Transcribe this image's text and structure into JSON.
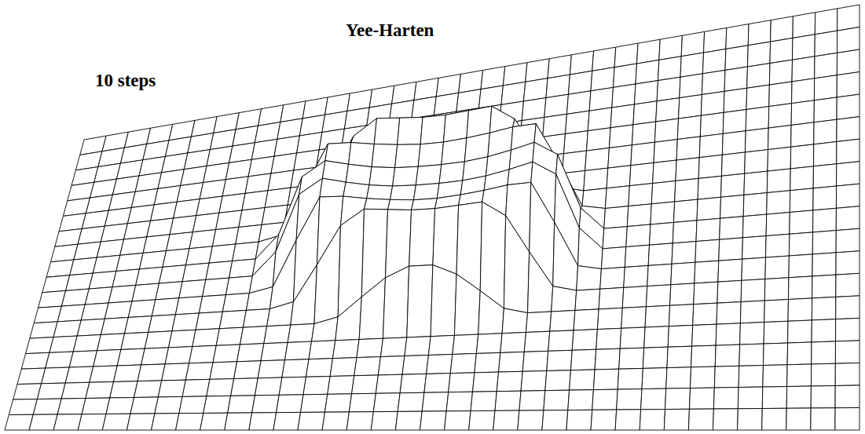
{
  "chart_data": {
    "type": "surface",
    "title": "Yee-Harten",
    "subtitle": "10 steps",
    "tick_labels": false,
    "grid": true,
    "color": "#000000",
    "x": [
      0,
      1,
      2,
      3,
      4,
      5,
      6,
      7,
      8,
      9,
      10,
      11,
      12,
      13,
      14,
      15,
      16,
      17,
      18,
      19,
      20,
      21,
      22,
      23,
      24,
      25,
      26,
      27,
      28,
      29,
      30,
      31,
      32,
      33,
      34,
      35
    ],
    "y": [
      0,
      1,
      2,
      3,
      4,
      5,
      6,
      7,
      8,
      9,
      10,
      11,
      12,
      13,
      14,
      15,
      16,
      17,
      18,
      19
    ],
    "xlim": [
      0,
      35
    ],
    "ylim": [
      0,
      19
    ],
    "zlim": [
      0,
      1
    ],
    "z": [
      [
        0,
        0,
        0,
        0,
        0,
        0,
        0,
        0,
        0,
        0,
        0,
        0,
        0,
        0,
        0,
        0,
        0,
        0,
        0,
        0,
        0,
        0,
        0,
        0,
        0,
        0,
        0,
        0,
        0,
        0,
        0,
        0,
        0,
        0,
        0,
        0
      ],
      [
        0,
        0,
        0,
        0,
        0,
        0,
        0,
        0,
        0,
        0,
        0,
        0,
        0,
        0,
        0,
        0,
        0,
        0,
        0,
        0,
        0,
        0,
        0,
        0,
        0,
        0,
        0,
        0,
        0,
        0,
        0,
        0,
        0,
        0,
        0,
        0
      ],
      [
        0,
        0,
        0,
        0,
        0,
        0,
        0,
        0,
        0,
        0,
        0,
        0,
        0,
        0,
        0,
        0,
        0,
        0,
        0,
        0,
        0,
        0,
        0,
        0,
        0,
        0,
        0,
        0,
        0,
        0,
        0,
        0,
        0,
        0,
        0,
        0
      ],
      [
        0,
        0,
        0,
        0,
        0,
        0,
        0,
        0,
        0,
        0,
        0,
        0,
        0,
        0,
        0,
        0,
        0,
        0,
        0,
        0,
        0,
        0,
        0,
        0,
        0,
        0,
        0,
        0,
        0,
        0,
        0,
        0,
        0,
        0,
        0,
        0
      ],
      [
        0,
        0,
        0,
        0,
        0,
        0,
        0,
        0,
        0,
        0,
        0,
        0,
        0,
        0,
        0,
        0,
        0,
        0,
        0,
        0,
        0,
        0,
        0,
        0,
        0,
        0,
        0,
        0,
        0,
        0,
        0,
        0,
        0,
        0,
        0,
        0
      ],
      [
        0,
        0,
        0,
        0,
        0,
        0,
        0,
        0,
        0,
        0,
        0,
        0,
        0,
        0,
        0,
        0,
        0,
        0,
        0,
        0,
        0,
        0,
        0,
        0,
        0,
        0,
        0,
        0,
        0,
        0,
        0,
        0,
        0,
        0,
        0,
        0
      ],
      [
        0,
        0,
        0,
        0,
        0,
        0,
        0,
        0,
        0,
        0,
        0,
        0,
        0,
        0.06,
        0.26,
        0.45,
        0.56,
        0.56,
        0.45,
        0.26,
        0.06,
        0,
        0,
        0,
        0,
        0,
        0,
        0,
        0,
        0,
        0,
        0,
        0,
        0,
        0,
        0
      ],
      [
        0,
        0,
        0,
        0,
        0,
        0,
        0,
        0,
        0,
        0,
        0,
        0.06,
        0.44,
        0.84,
        1.0,
        0.98,
        0.96,
        0.96,
        0.98,
        1.0,
        0.84,
        0.44,
        0.06,
        0,
        0,
        0,
        0,
        0,
        0,
        0,
        0,
        0,
        0,
        0,
        0,
        0
      ],
      [
        0,
        0,
        0,
        0,
        0,
        0,
        0,
        0,
        0,
        0,
        0.05,
        0.53,
        0.97,
        0.96,
        0.92,
        0.89,
        0.87,
        0.87,
        0.89,
        0.92,
        0.96,
        0.97,
        0.53,
        0.05,
        0,
        0,
        0,
        0,
        0,
        0,
        0,
        0,
        0,
        0,
        0,
        0
      ],
      [
        0,
        0,
        0,
        0,
        0,
        0,
        0,
        0,
        0,
        0,
        0.24,
        0.83,
        0.98,
        0.92,
        0.87,
        0.84,
        0.83,
        0.83,
        0.84,
        0.87,
        0.92,
        0.98,
        0.83,
        0.24,
        0,
        0,
        0,
        0,
        0,
        0,
        0,
        0,
        0,
        0,
        0,
        0
      ],
      [
        0,
        0,
        0,
        0,
        0,
        0,
        0,
        0,
        0,
        0,
        0.24,
        0.83,
        0.98,
        0.92,
        0.87,
        0.84,
        0.83,
        0.83,
        0.84,
        0.87,
        0.92,
        0.98,
        0.83,
        0.24,
        0,
        0,
        0,
        0,
        0,
        0,
        0,
        0,
        0,
        0,
        0,
        0
      ],
      [
        0,
        0,
        0,
        0,
        0,
        0,
        0,
        0,
        0,
        0,
        0.05,
        0.53,
        0.97,
        0.96,
        0.92,
        0.89,
        0.87,
        0.87,
        0.89,
        0.92,
        0.96,
        0.97,
        0.53,
        0.05,
        0,
        0,
        0,
        0,
        0,
        0,
        0,
        0,
        0,
        0,
        0,
        0
      ],
      [
        0,
        0,
        0,
        0,
        0,
        0,
        0,
        0,
        0,
        0,
        0,
        0.06,
        0.44,
        0.84,
        1.0,
        0.98,
        0.96,
        0.96,
        0.98,
        1.0,
        0.84,
        0.44,
        0.06,
        0,
        0,
        0,
        0,
        0,
        0,
        0,
        0,
        0,
        0,
        0,
        0,
        0
      ],
      [
        0,
        0,
        0,
        0,
        0,
        0,
        0,
        0,
        0,
        0,
        0,
        0,
        0,
        0.06,
        0.26,
        0.45,
        0.56,
        0.56,
        0.45,
        0.26,
        0.06,
        0,
        0,
        0,
        0,
        0,
        0,
        0,
        0,
        0,
        0,
        0,
        0,
        0,
        0,
        0
      ],
      [
        0,
        0,
        0,
        0,
        0,
        0,
        0,
        0,
        0,
        0,
        0,
        0,
        0,
        0,
        0,
        0,
        0,
        0,
        0,
        0,
        0,
        0,
        0,
        0,
        0,
        0,
        0,
        0,
        0,
        0,
        0,
        0,
        0,
        0,
        0,
        0
      ],
      [
        0,
        0,
        0,
        0,
        0,
        0,
        0,
        0,
        0,
        0,
        0,
        0,
        0,
        0,
        0,
        0,
        0,
        0,
        0,
        0,
        0,
        0,
        0,
        0,
        0,
        0,
        0,
        0,
        0,
        0,
        0,
        0,
        0,
        0,
        0,
        0
      ],
      [
        0,
        0,
        0,
        0,
        0,
        0,
        0,
        0,
        0,
        0,
        0,
        0,
        0,
        0,
        0,
        0,
        0,
        0,
        0,
        0,
        0,
        0,
        0,
        0,
        0,
        0,
        0,
        0,
        0,
        0,
        0,
        0,
        0,
        0,
        0,
        0
      ],
      [
        0,
        0,
        0,
        0,
        0,
        0,
        0,
        0,
        0,
        0,
        0,
        0,
        0,
        0,
        0,
        0,
        0,
        0,
        0,
        0,
        0,
        0,
        0,
        0,
        0,
        0,
        0,
        0,
        0,
        0,
        0,
        0,
        0,
        0,
        0,
        0
      ],
      [
        0,
        0,
        0,
        0,
        0,
        0,
        0,
        0,
        0,
        0,
        0,
        0,
        0,
        0,
        0,
        0,
        0,
        0,
        0,
        0,
        0,
        0,
        0,
        0,
        0,
        0,
        0,
        0,
        0,
        0,
        0,
        0,
        0,
        0,
        0,
        0
      ],
      [
        0,
        0,
        0,
        0,
        0,
        0,
        0,
        0,
        0,
        0,
        0,
        0,
        0,
        0,
        0,
        0,
        0,
        0,
        0,
        0,
        0,
        0,
        0,
        0,
        0,
        0,
        0,
        0,
        0,
        0,
        0,
        0,
        0,
        0,
        0,
        0
      ]
    ]
  }
}
